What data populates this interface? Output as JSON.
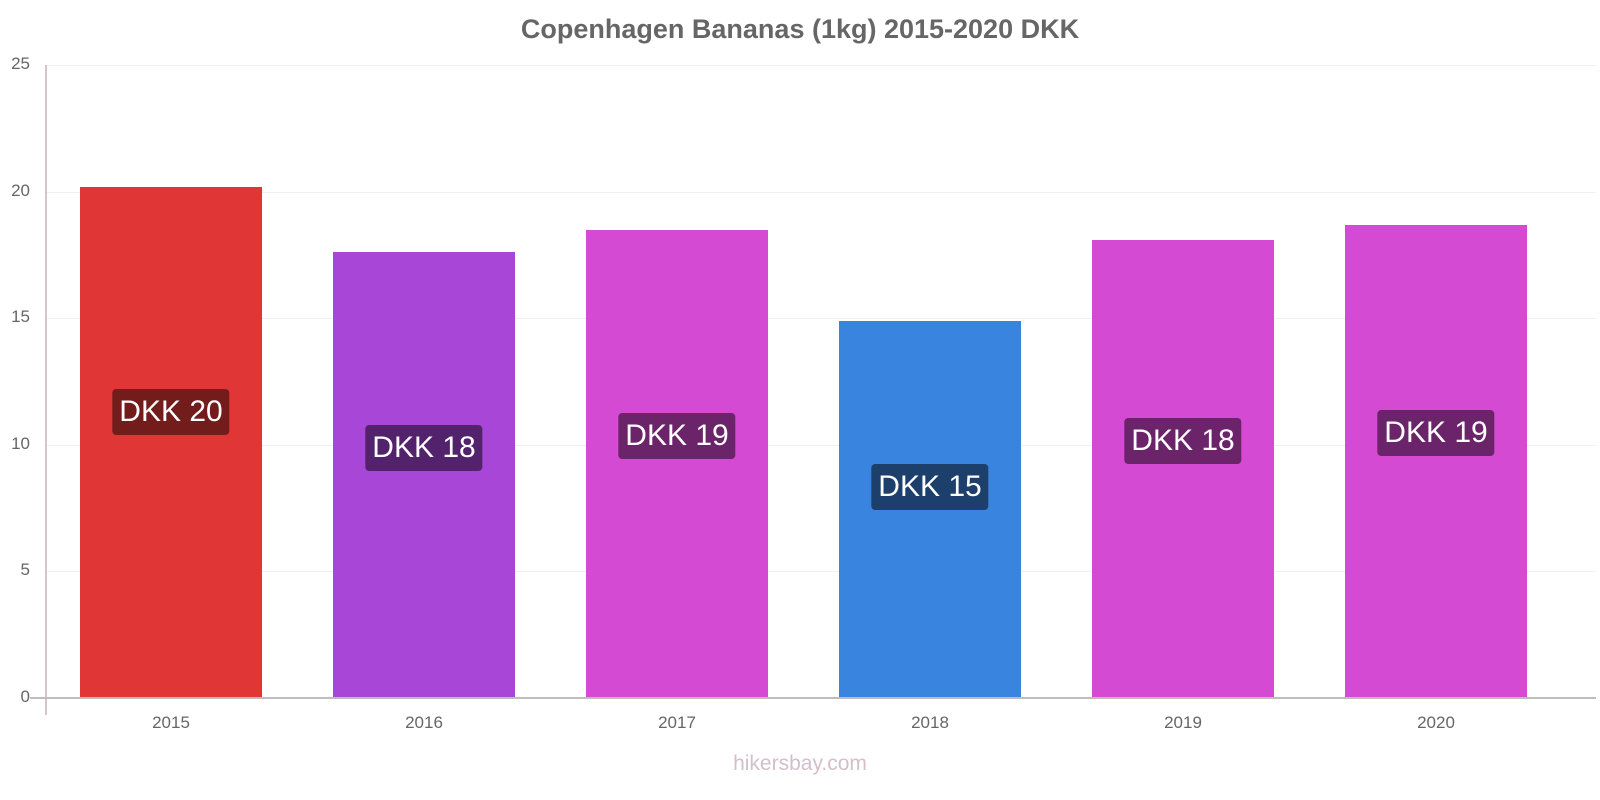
{
  "chart_data": {
    "type": "bar",
    "title": "Copenhagen Bananas (1kg) 2015-2020 DKK",
    "xlabel": "",
    "ylabel": "",
    "ylim": [
      0,
      25
    ],
    "yticks": [
      0,
      5,
      10,
      15,
      20,
      25
    ],
    "grid": true,
    "categories": [
      "2015",
      "2016",
      "2017",
      "2018",
      "2019",
      "2020"
    ],
    "values": [
      20.2,
      17.6,
      18.5,
      14.9,
      18.1,
      18.7
    ],
    "labels": [
      "DKK 20",
      "DKK 18",
      "DKK 19",
      "DKK 15",
      "DKK 18",
      "DKK 19"
    ],
    "bar_colors": [
      "#e03636",
      "#a846d8",
      "#d54ad3",
      "#3884df",
      "#d54ad3",
      "#d54ad3"
    ],
    "label_colors": [
      "#731c1c",
      "#52226d",
      "#6b2469",
      "#1c3f6c",
      "#6b2469",
      "#6b2469"
    ]
  },
  "watermark": "hikersbay.com"
}
